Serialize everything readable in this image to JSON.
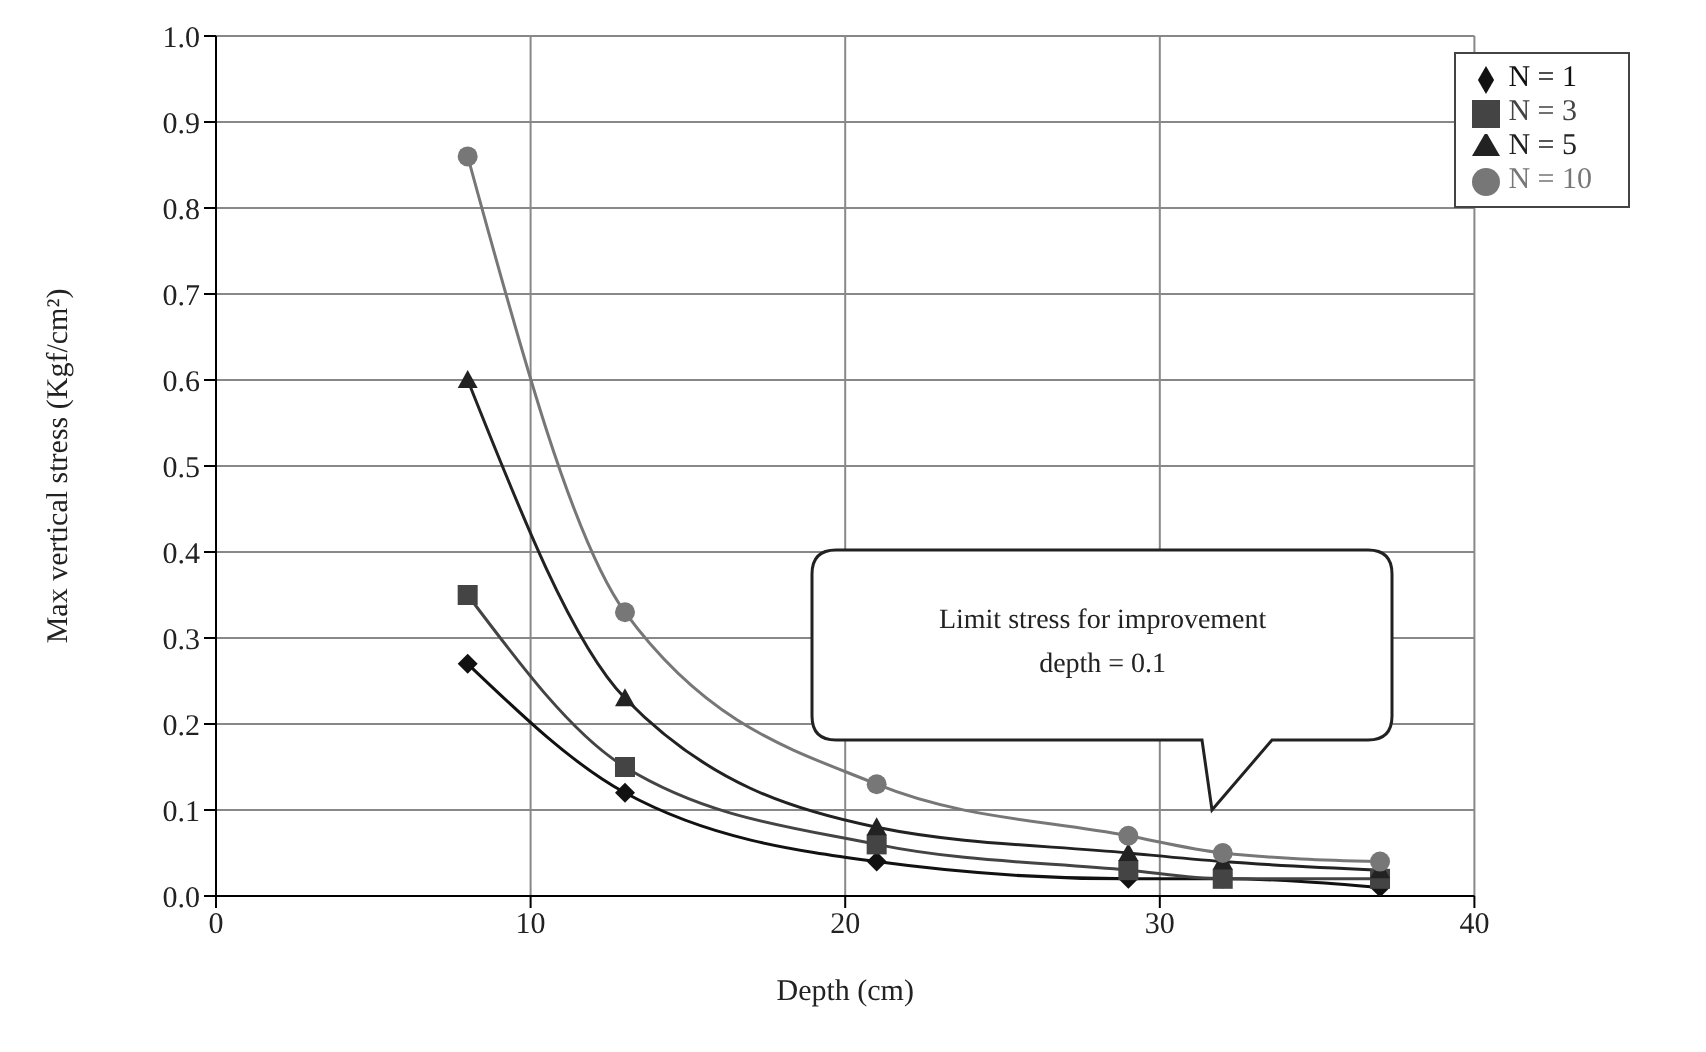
{
  "chart_data": {
    "type": "line",
    "xlabel": "Depth (cm)",
    "ylabel": "Max vertical stress (Kgf/cm²)",
    "x": [
      8,
      13,
      21,
      29,
      32,
      37
    ],
    "series": [
      {
        "name": "N = 1",
        "color": "#111111",
        "marker": "diamond",
        "values": [
          0.27,
          0.12,
          0.04,
          0.02,
          0.02,
          0.01
        ]
      },
      {
        "name": "N = 3",
        "color": "#444444",
        "marker": "square",
        "values": [
          0.35,
          0.15,
          0.06,
          0.03,
          0.02,
          0.02
        ]
      },
      {
        "name": "N = 5",
        "color": "#222222",
        "marker": "triangle",
        "values": [
          0.6,
          0.23,
          0.08,
          0.05,
          0.04,
          0.03
        ]
      },
      {
        "name": "N = 10",
        "color": "#777777",
        "marker": "circle",
        "values": [
          0.86,
          0.33,
          0.13,
          0.07,
          0.05,
          0.04
        ]
      }
    ],
    "xlim": [
      0,
      40
    ],
    "xticks": [
      0,
      10,
      20,
      30,
      40
    ],
    "ylim": [
      0,
      1
    ],
    "yticks": [
      {
        "value": 0,
        "label": "0.0"
      },
      0.1,
      0.2,
      0.3,
      0.4,
      0.5,
      0.6,
      0.7,
      0.8,
      0.9,
      {
        "value": 1,
        "label": "1.0"
      }
    ],
    "grid": true,
    "legend": "top right",
    "annotations": [
      "Limit stress for improvement depth = 0.1"
    ]
  }
}
